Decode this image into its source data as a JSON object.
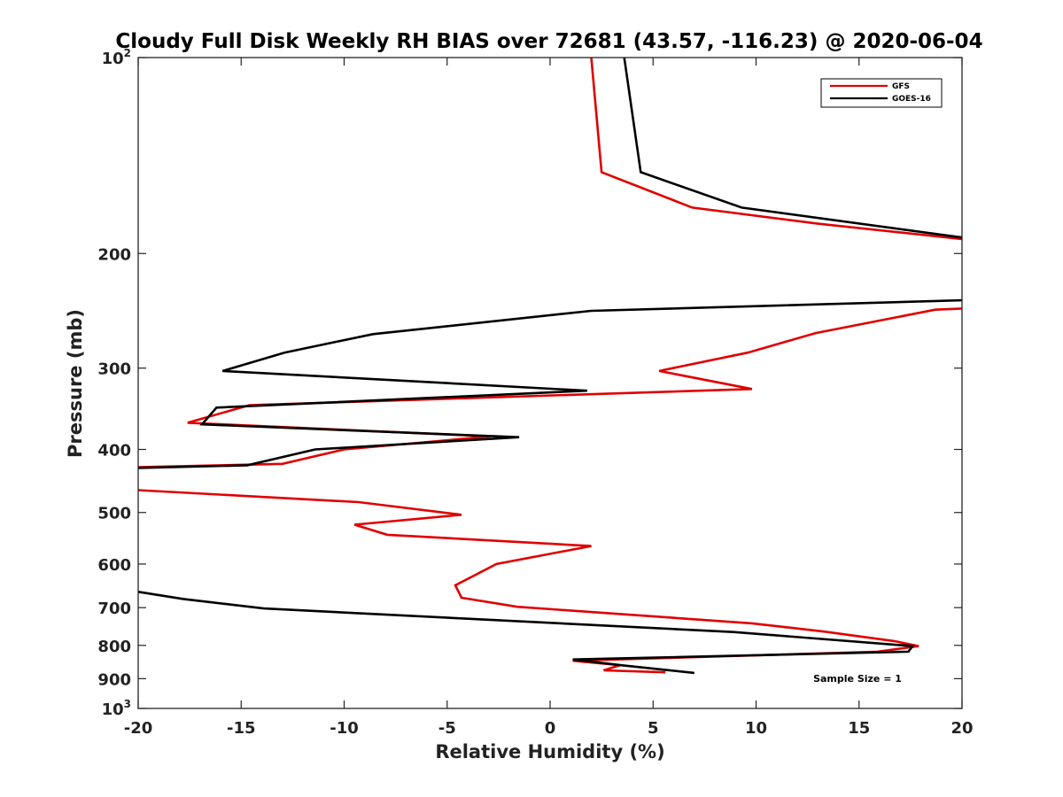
{
  "chart_data": {
    "type": "line",
    "title": "Cloudy Full Disk Weekly RH BIAS over 72681 (43.57, -116.23) @ 2020-06-04",
    "xlabel": "Relative Humidity (%)",
    "ylabel": "Pressure (mb)",
    "xlim": [
      -20,
      20
    ],
    "ylim": [
      100,
      1000
    ],
    "y_scale": "log",
    "y_reversed": true,
    "grid": false,
    "legend_position": "top-right",
    "x_ticks": [
      "-20",
      "-15",
      "-10",
      "-5",
      "0",
      "5",
      "10",
      "15",
      "20"
    ],
    "y_ticks": [
      {
        "value": 100,
        "base": "10",
        "exp": "2"
      },
      {
        "value": 200,
        "label": "200"
      },
      {
        "value": 300,
        "label": "300"
      },
      {
        "value": 400,
        "label": "400"
      },
      {
        "value": 500,
        "label": "500"
      },
      {
        "value": 600,
        "label": "600"
      },
      {
        "value": 700,
        "label": "700"
      },
      {
        "value": 800,
        "label": "800"
      },
      {
        "value": 900,
        "label": "900"
      },
      {
        "value": 1000,
        "base": "10",
        "exp": "3"
      }
    ],
    "series": [
      {
        "name": "GFS",
        "color": "#e00000",
        "segments": [
          [
            [
              2.0,
              100
            ],
            [
              2.5,
              150
            ],
            [
              6.9,
              170
            ],
            [
              13.0,
              180
            ],
            [
              20.0,
              190
            ]
          ],
          [
            [
              20.0,
              243
            ],
            [
              18.7,
              244
            ],
            [
              12.9,
              265
            ],
            [
              9.6,
              284
            ],
            [
              5.3,
              303
            ],
            [
              9.8,
              323
            ],
            [
              -14.6,
              342
            ],
            [
              -17.6,
              364
            ],
            [
              -2.9,
              382
            ],
            [
              -10.0,
              400
            ],
            [
              -13.0,
              421
            ],
            [
              -20.0,
              426
            ]
          ],
          [
            [
              -20.0,
              462
            ],
            [
              -9.3,
              482
            ],
            [
              -4.3,
              504
            ],
            [
              -9.5,
              522
            ],
            [
              -7.9,
              541
            ],
            [
              2.0,
              563
            ],
            [
              -2.6,
              600
            ],
            [
              -4.6,
              647
            ],
            [
              -4.3,
              676
            ],
            [
              -1.6,
              698
            ],
            [
              9.8,
              740
            ],
            [
              13.3,
              762
            ],
            [
              16.7,
              788
            ],
            [
              17.9,
              802
            ],
            [
              15.9,
              818
            ],
            [
              1.1,
              845
            ],
            [
              3.4,
              858
            ],
            [
              2.6,
              874
            ],
            [
              5.6,
              880
            ]
          ]
        ]
      },
      {
        "name": "GOES-16",
        "color": "#000000",
        "segments": [
          [
            [
              3.6,
              100
            ],
            [
              4.4,
              150
            ],
            [
              9.3,
              170
            ],
            [
              20.0,
              189
            ]
          ],
          [
            [
              20.0,
              236
            ],
            [
              2.0,
              245
            ],
            [
              -8.6,
              266
            ],
            [
              -12.9,
              284
            ],
            [
              -15.9,
              303
            ],
            [
              1.8,
              325
            ],
            [
              -16.2,
              345
            ],
            [
              -16.9,
              366
            ],
            [
              -1.5,
              383
            ],
            [
              -11.4,
              400
            ],
            [
              -14.7,
              423
            ],
            [
              -20.0,
              427
            ]
          ],
          [
            [
              -20.0,
              662
            ],
            [
              -17.8,
              679
            ],
            [
              -13.9,
              702
            ],
            [
              8.9,
              763
            ],
            [
              17.6,
              802
            ],
            [
              17.4,
              818
            ],
            [
              1.1,
              841
            ],
            [
              3.4,
              858
            ],
            [
              7.0,
              882
            ]
          ]
        ]
      }
    ],
    "annotation": "Sample Size = 1"
  }
}
